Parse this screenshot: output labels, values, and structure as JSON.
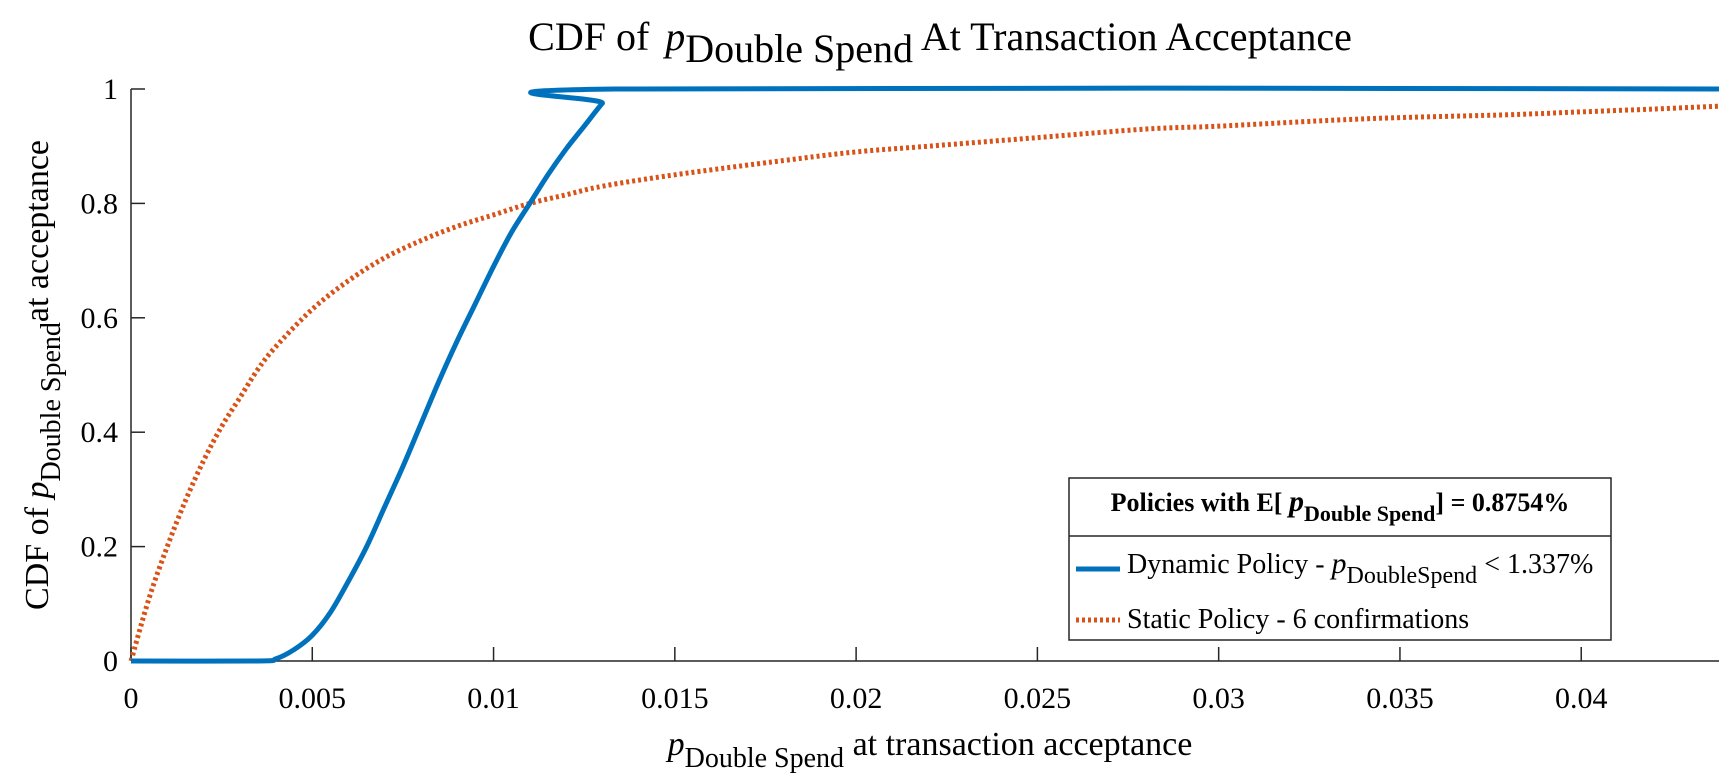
{
  "chart_data": {
    "type": "line",
    "title": {
      "prefix": "CDF of ",
      "symbol": "p",
      "subscript": "Double Spend",
      "suffix": " At Transaction Acceptance"
    },
    "xlabel": {
      "symbol": "p",
      "subscript": "Double Spend",
      "suffix": " at transaction acceptance"
    },
    "ylabel": {
      "prefix": "CDF of ",
      "symbol": "p",
      "subscript": "Double Spend",
      "suffix": "at acceptance"
    },
    "xlim": [
      0,
      0.0438
    ],
    "ylim": [
      0,
      1
    ],
    "x_ticks": [
      0,
      0.005,
      0.01,
      0.015,
      0.02,
      0.025,
      0.03,
      0.035,
      0.04
    ],
    "x_tick_labels": [
      "0",
      "0.005",
      "0.01",
      "0.015",
      "0.02",
      "0.025",
      "0.03",
      "0.035",
      "0.04"
    ],
    "y_ticks": [
      0,
      0.2,
      0.4,
      0.6,
      0.8,
      1
    ],
    "y_tick_labels": [
      "0",
      "0.2",
      "0.4",
      "0.6",
      "0.8",
      "1"
    ],
    "grid": false,
    "legend": {
      "placement": "bottom-right",
      "title_prefix": "Policies with E[ ",
      "title_symbol": "p",
      "title_subscript": "Double Spend",
      "title_suffix": "] = 0.8754%",
      "entries": [
        {
          "prefix": "Dynamic Policy -  ",
          "symbol": "p",
          "subscript": "DoubleSpend",
          "suffix": " < 1.337%"
        },
        {
          "prefix": "Static Policy - 6 confirmations",
          "symbol": "",
          "subscript": "",
          "suffix": ""
        }
      ]
    },
    "series": [
      {
        "name": "Dynamic Policy -  pDoubleSpend < 1.337%",
        "color": "#0072BD",
        "style": "solid",
        "x": [
          0,
          0.0035,
          0.004,
          0.0045,
          0.005,
          0.0055,
          0.006,
          0.0065,
          0.007,
          0.0075,
          0.008,
          0.0085,
          0.009,
          0.0095,
          0.01,
          0.0105,
          0.011,
          0.0115,
          0.012,
          0.0125,
          0.013,
          0.01337,
          0.0438
        ],
        "y": [
          0,
          0,
          0.004,
          0.02,
          0.045,
          0.085,
          0.14,
          0.2,
          0.27,
          0.34,
          0.415,
          0.49,
          0.56,
          0.625,
          0.69,
          0.75,
          0.8,
          0.85,
          0.895,
          0.935,
          0.975,
          1,
          1
        ]
      },
      {
        "name": "Static Policy - 6 confirmations",
        "color": "#D95319",
        "style": "dotted",
        "x": [
          0,
          0.0005,
          0.001,
          0.0015,
          0.002,
          0.0025,
          0.003,
          0.0035,
          0.004,
          0.005,
          0.006,
          0.007,
          0.008,
          0.009,
          0.01,
          0.011,
          0.012,
          0.013,
          0.015,
          0.018,
          0.02,
          0.022,
          0.025,
          0.028,
          0.03,
          0.033,
          0.035,
          0.038,
          0.04,
          0.042,
          0.0438
        ],
        "y": [
          0,
          0.11,
          0.2,
          0.28,
          0.35,
          0.41,
          0.46,
          0.51,
          0.55,
          0.615,
          0.665,
          0.705,
          0.735,
          0.76,
          0.78,
          0.8,
          0.815,
          0.83,
          0.85,
          0.875,
          0.89,
          0.9,
          0.915,
          0.93,
          0.935,
          0.945,
          0.95,
          0.955,
          0.96,
          0.965,
          0.97
        ]
      }
    ]
  }
}
